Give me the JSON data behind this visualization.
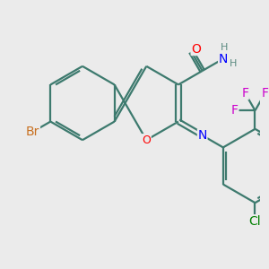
{
  "bg_color": "#ebebeb",
  "bond_color": "#3d7a6e",
  "bond_lw": 1.6,
  "atom_colors": {
    "Br": "#c87020",
    "O": "#ff0000",
    "N": "#0000ff",
    "Cl": "#008000",
    "F": "#cc00cc",
    "H": "#5a8a80"
  },
  "font_size": 10
}
